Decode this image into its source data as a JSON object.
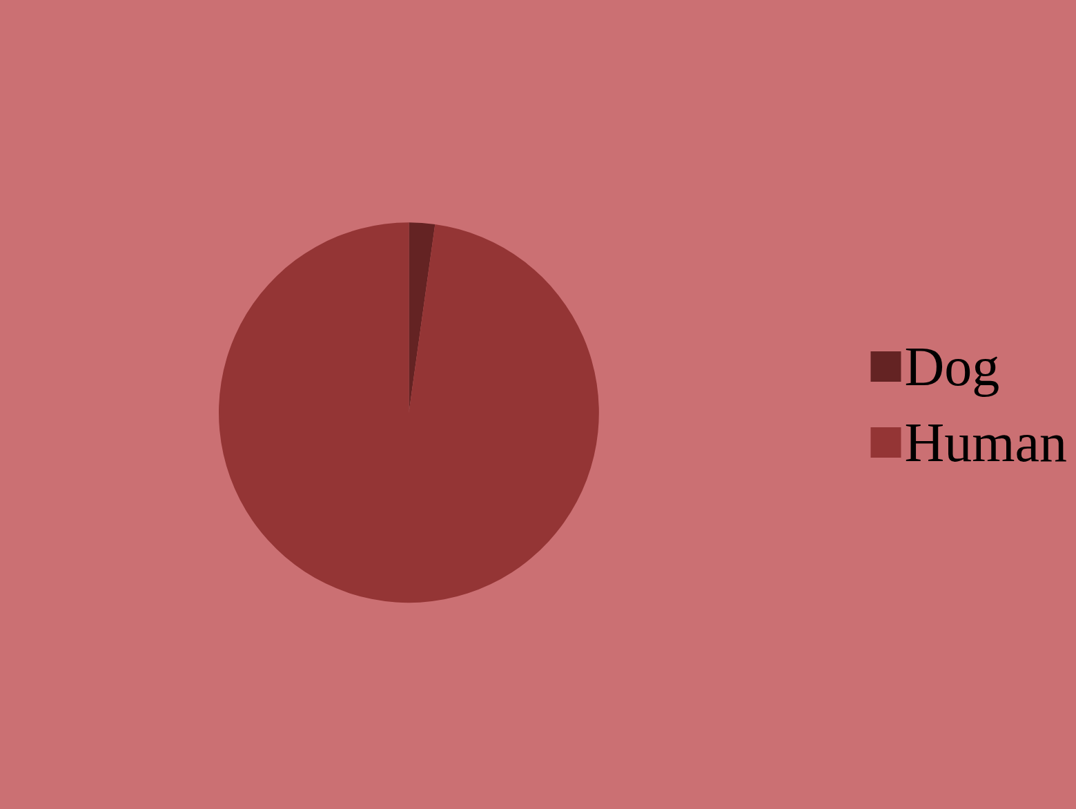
{
  "chart_data": {
    "type": "pie",
    "categories": [
      "Dog",
      "Human"
    ],
    "values": [
      2.2,
      97.8
    ],
    "colors": [
      "#642323",
      "#943535"
    ],
    "legend": "right"
  }
}
